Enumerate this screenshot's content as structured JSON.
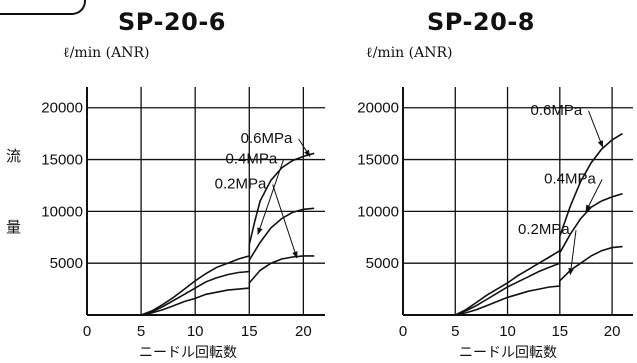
{
  "y_label_chars": [
    "流",
    "量"
  ],
  "chart_data": [
    {
      "type": "line",
      "title": "SP-20-6",
      "ylabel": "ℓ/min (ANR)",
      "xlabel": "ニードル回転数",
      "xlim": [
        0,
        22
      ],
      "ylim": [
        0,
        22000
      ],
      "x_ticks": [
        0,
        5,
        10,
        15,
        20
      ],
      "y_ticks": [
        5000,
        10000,
        15000,
        20000
      ],
      "grid": true,
      "series": [
        {
          "name": "0.6MPa",
          "label_x": 14.2,
          "label_y": 16600,
          "arrow_to": [
            20.6,
            15300
          ],
          "points": [
            [
              5,
              0
            ],
            [
              6,
              400
            ],
            [
              7,
              1000
            ],
            [
              8,
              1700
            ],
            [
              9,
              2500
            ],
            [
              10,
              3300
            ],
            [
              11,
              4000
            ],
            [
              12,
              4600
            ],
            [
              13,
              5000
            ],
            [
              14,
              5400
            ],
            [
              15,
              5700
            ],
            [
              15,
              6800
            ],
            [
              15.5,
              9000
            ],
            [
              16,
              11000
            ],
            [
              17,
              13000
            ],
            [
              18,
              14200
            ],
            [
              19,
              14900
            ],
            [
              20,
              15300
            ],
            [
              21,
              15600
            ]
          ]
        },
        {
          "name": "0.4MPa",
          "label_x": 12.8,
          "label_y": 14600,
          "arrow_to": [
            15.8,
            7800
          ],
          "points": [
            [
              5,
              0
            ],
            [
              6,
              300
            ],
            [
              7,
              800
            ],
            [
              8,
              1400
            ],
            [
              9,
              2000
            ],
            [
              10,
              2600
            ],
            [
              11,
              3200
            ],
            [
              12,
              3600
            ],
            [
              13,
              3900
            ],
            [
              14,
              4100
            ],
            [
              15,
              4200
            ],
            [
              15,
              5300
            ],
            [
              16,
              7000
            ],
            [
              17,
              8400
            ],
            [
              18,
              9300
            ],
            [
              19,
              9900
            ],
            [
              20,
              10200
            ],
            [
              21,
              10300
            ]
          ]
        },
        {
          "name": "0.2MPa",
          "label_x": 11.8,
          "label_y": 12200,
          "arrow_to": [
            19.4,
            5500
          ],
          "points": [
            [
              5,
              0
            ],
            [
              6,
              200
            ],
            [
              7,
              500
            ],
            [
              8,
              900
            ],
            [
              9,
              1300
            ],
            [
              10,
              1600
            ],
            [
              11,
              2000
            ],
            [
              12,
              2200
            ],
            [
              13,
              2400
            ],
            [
              14,
              2500
            ],
            [
              15,
              2600
            ],
            [
              15,
              3100
            ],
            [
              16,
              4300
            ],
            [
              17,
              5000
            ],
            [
              18,
              5400
            ],
            [
              19,
              5600
            ],
            [
              20,
              5700
            ],
            [
              21,
              5700
            ]
          ]
        }
      ]
    },
    {
      "type": "line",
      "title": "SP-20-8",
      "ylabel": "ℓ/min (ANR)",
      "xlabel": "ニードル回転数",
      "xlim": [
        0,
        22
      ],
      "ylim": [
        0,
        22000
      ],
      "x_ticks": [
        0,
        5,
        10,
        15,
        20
      ],
      "y_ticks": [
        5000,
        10000,
        15000,
        20000
      ],
      "grid": true,
      "series": [
        {
          "name": "0.6MPa",
          "label_x": 12.2,
          "label_y": 19300,
          "arrow_to": [
            19.1,
            16200
          ],
          "points": [
            [
              5,
              0
            ],
            [
              6,
              500
            ],
            [
              7,
              1200
            ],
            [
              8,
              1900
            ],
            [
              9,
              2500
            ],
            [
              10,
              3100
            ],
            [
              11,
              3800
            ],
            [
              12,
              4400
            ],
            [
              13,
              5000
            ],
            [
              14,
              5600
            ],
            [
              15,
              6200
            ],
            [
              15,
              7600
            ],
            [
              16,
              10500
            ],
            [
              17,
              12900
            ],
            [
              18,
              14700
            ],
            [
              19,
              16000
            ],
            [
              20,
              16900
            ],
            [
              21,
              17500
            ]
          ]
        },
        {
          "name": "0.4MPa",
          "label_x": 13.5,
          "label_y": 12700,
          "arrow_to": [
            17.5,
            10000
          ],
          "points": [
            [
              5,
              0
            ],
            [
              6,
              400
            ],
            [
              7,
              900
            ],
            [
              8,
              1500
            ],
            [
              9,
              2100
            ],
            [
              10,
              2700
            ],
            [
              11,
              3200
            ],
            [
              12,
              3700
            ],
            [
              13,
              4200
            ],
            [
              14,
              4600
            ],
            [
              15,
              5000
            ],
            [
              15,
              6000
            ],
            [
              16,
              7800
            ],
            [
              17,
              9300
            ],
            [
              18,
              10400
            ],
            [
              19,
              11000
            ],
            [
              20,
              11400
            ],
            [
              21,
              11700
            ]
          ]
        },
        {
          "name": "0.2MPa",
          "label_x": 11.0,
          "label_y": 7800,
          "arrow_to": [
            16.0,
            3900
          ],
          "points": [
            [
              5,
              0
            ],
            [
              6,
              200
            ],
            [
              7,
              500
            ],
            [
              8,
              900
            ],
            [
              9,
              1300
            ],
            [
              10,
              1700
            ],
            [
              11,
              2000
            ],
            [
              12,
              2300
            ],
            [
              13,
              2500
            ],
            [
              14,
              2700
            ],
            [
              15,
              2800
            ],
            [
              15,
              3300
            ],
            [
              16,
              4300
            ],
            [
              17,
              5000
            ],
            [
              18,
              5700
            ],
            [
              19,
              6200
            ],
            [
              20,
              6500
            ],
            [
              21,
              6600
            ]
          ]
        }
      ]
    }
  ]
}
